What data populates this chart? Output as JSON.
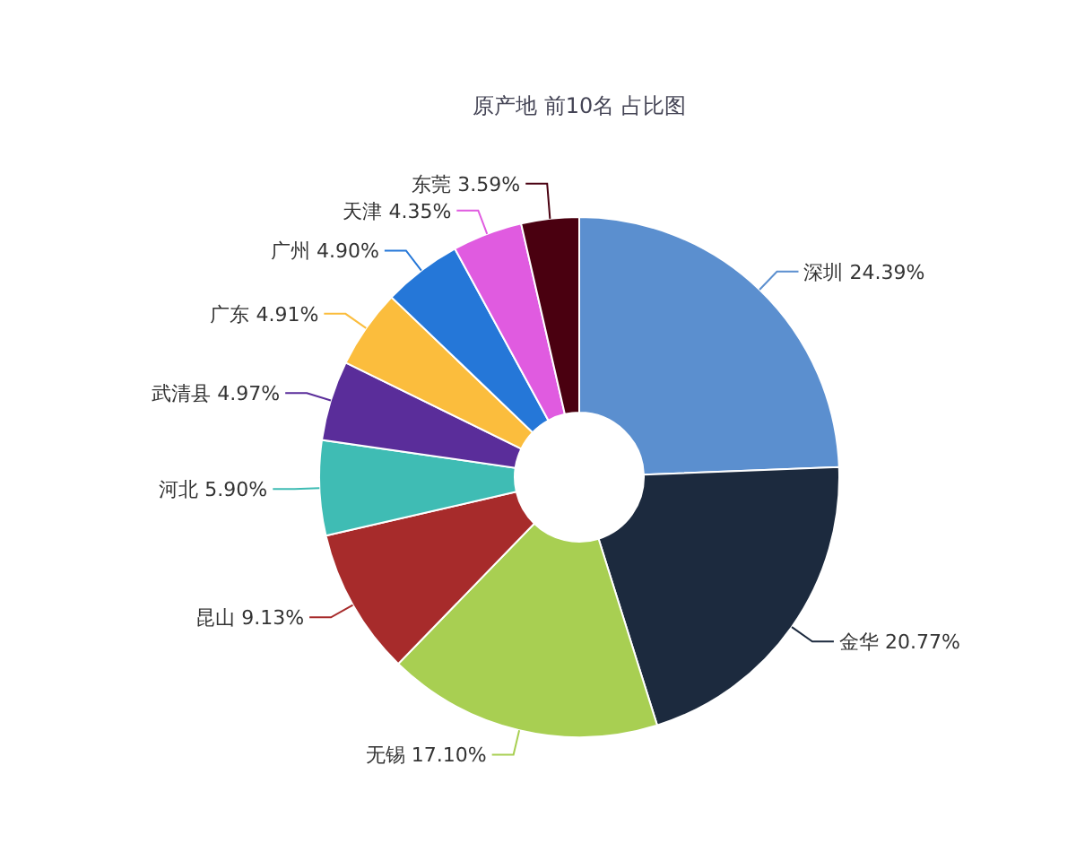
{
  "chart_data": {
    "type": "donut",
    "title": "原产地 前10名 占比图",
    "categories": [
      "深圳",
      "金华",
      "无锡",
      "昆山",
      "河北",
      "武清县",
      "广东",
      "广州",
      "天津",
      "东莞"
    ],
    "values": [
      24.39,
      20.77,
      17.1,
      9.13,
      5.9,
      4.97,
      4.91,
      4.9,
      4.35,
      3.59
    ],
    "value_labels": [
      "24.39%",
      "20.77%",
      "17.10%",
      "9.13%",
      "5.90%",
      "4.97%",
      "4.91%",
      "4.90%",
      "4.35%",
      "3.59%"
    ],
    "colors": [
      "#5b8fcf",
      "#1c2a3e",
      "#a8cf52",
      "#a72b2b",
      "#3fbcb4",
      "#5a2d9a",
      "#fbbd3d",
      "#2577d8",
      "#e05be0",
      "#4a0010"
    ],
    "legend": false
  }
}
